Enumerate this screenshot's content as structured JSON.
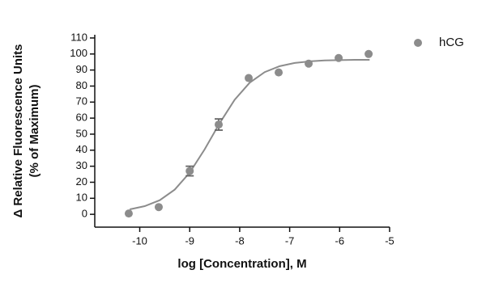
{
  "chart_data": {
    "type": "scatter",
    "x_label": "log [Concentration], M",
    "y_label": [
      "Δ Relative Fluorescence Units",
      "(% of Maximum)"
    ],
    "series": [
      {
        "name": "hCG",
        "color": "#8c8c8c",
        "x": [
          -10.22,
          -9.62,
          -9.0,
          -8.42,
          -7.82,
          -7.22,
          -6.62,
          -6.02,
          -5.42
        ],
        "values": [
          0.5,
          4.5,
          27,
          56,
          85,
          88.5,
          94,
          97.5,
          100
        ],
        "errors": [
          null,
          null,
          3,
          3.5,
          null,
          null,
          null,
          null,
          null
        ]
      }
    ],
    "fit_curve": {
      "color": "#8c8c8c",
      "x": [
        -10.2,
        -9.9,
        -9.6,
        -9.3,
        -9.0,
        -8.7,
        -8.4,
        -8.1,
        -7.8,
        -7.5,
        -7.2,
        -6.9,
        -6.6,
        -6.3,
        -6.0,
        -5.7,
        -5.4
      ],
      "y": [
        3.1,
        5.1,
        8.8,
        15.4,
        26,
        40.6,
        56.9,
        71.5,
        82.1,
        88.7,
        92.4,
        94.4,
        95.4,
        96.0,
        96.2,
        96.4,
        96.4
      ]
    },
    "xlim": [
      -10.9,
      -5
    ],
    "xticks": [
      -10,
      -9,
      -8,
      -7,
      -6,
      -5
    ],
    "ylim": [
      -8,
      112
    ],
    "yticks": [
      0,
      10,
      20,
      30,
      40,
      50,
      60,
      70,
      80,
      90,
      100,
      110
    ],
    "legend": "top-right"
  }
}
